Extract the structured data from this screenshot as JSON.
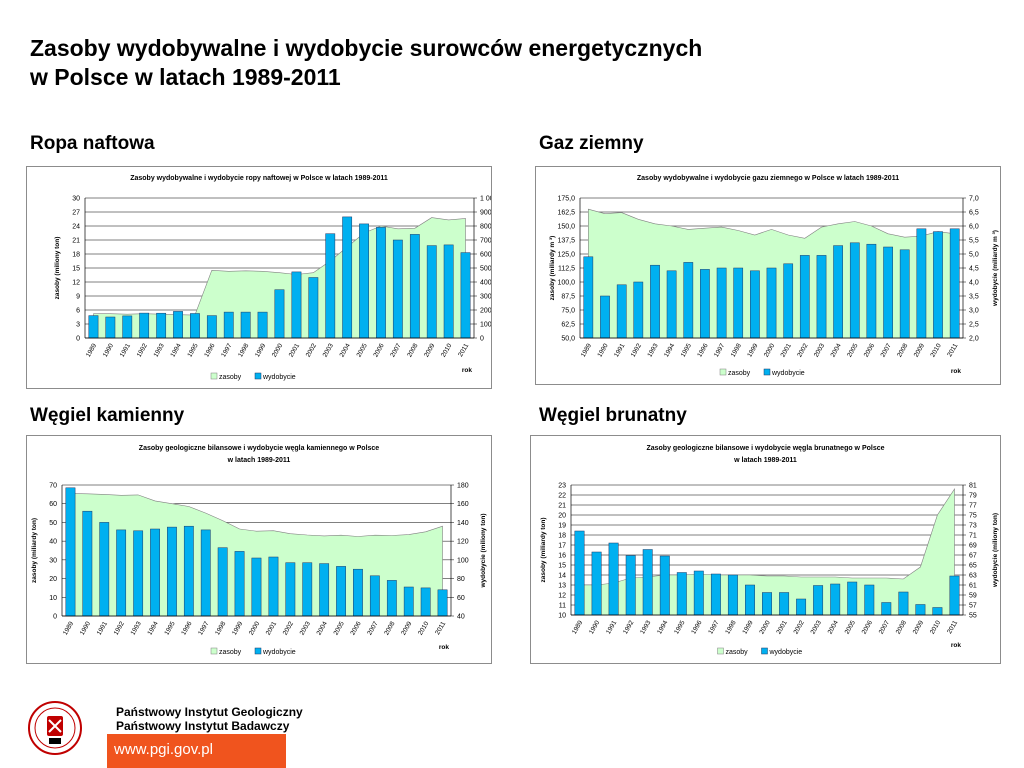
{
  "page": {
    "title_line1": "Zasoby wydobywalne i wydobycie surowców energetycznych",
    "title_line2": "w Polsce w latach 1989-2011"
  },
  "footer": {
    "institute_line1": "Państwowy Instytut Geologiczny",
    "institute_line2": "Państwowy Instytut Badawczy",
    "url": "www.pgi.gov.pl",
    "accent_color": "#f0541e"
  },
  "sections": {
    "oil": "Ropa naftowa",
    "gas": "Gaz ziemny",
    "hard_coal": "Węgiel kamienny",
    "lignite": "Węgiel brunatny"
  },
  "chart_data": [
    {
      "id": "oil",
      "type": "bar",
      "title": [
        "Zasoby wydobywalne i wydobycie ropy naftowej w Polsce w latach 1989-2011"
      ],
      "categories": [
        "1989",
        "1990",
        "1991",
        "1992",
        "1993",
        "1994",
        "1995",
        "1996",
        "1997",
        "1998",
        "1999",
        "2000",
        "2001",
        "2002",
        "2003",
        "2004",
        "2005",
        "2006",
        "2007",
        "2008",
        "2009",
        "2010",
        "2011"
      ],
      "xlabel": "rok",
      "ylabel_left": "zasoby (miliony ton)",
      "ylabel_right": "wydobycie (tysiące ton)",
      "ylim_left": [
        0,
        30
      ],
      "ylim_right": [
        0,
        1000
      ],
      "ticks_left": [
        "0",
        "3",
        "6",
        "9",
        "12",
        "15",
        "18",
        "21",
        "24",
        "27",
        "30"
      ],
      "ticks_right": [
        "0",
        "100",
        "200",
        "300",
        "400",
        "500",
        "600",
        "700",
        "800",
        "900",
        "1 000"
      ],
      "series": [
        {
          "name": "zasoby",
          "kind": "area",
          "axis": "left",
          "color": "#ccffcc",
          "values": [
            5.2,
            5.2,
            5.1,
            5.2,
            5.1,
            5.0,
            4.9,
            14.5,
            14.3,
            14.4,
            14.3,
            14.0,
            13.6,
            14.0,
            16.5,
            19.5,
            22.5,
            24.0,
            23.4,
            23.5,
            25.8,
            25.3,
            25.6
          ]
        },
        {
          "name": "wydobycie",
          "kind": "bar",
          "axis": "right",
          "color": "#00b0f0",
          "values": [
            160,
            150,
            158,
            178,
            177,
            190,
            175,
            160,
            185,
            185,
            185,
            345,
            472,
            432,
            745,
            865,
            815,
            790,
            700,
            740,
            660,
            665,
            610
          ]
        }
      ]
    },
    {
      "id": "gas",
      "type": "bar",
      "title": [
        "Zasoby wydobywalne i wydobycie gazu ziemnego w Polsce w latach 1989-2011"
      ],
      "categories": [
        "1989",
        "1990",
        "1991",
        "1992",
        "1993",
        "1994",
        "1995",
        "1996",
        "1997",
        "1998",
        "1999",
        "2000",
        "2001",
        "2002",
        "2003",
        "2004",
        "2005",
        "2006",
        "2007",
        "2008",
        "2009",
        "2010",
        "2011"
      ],
      "xlabel": "rok",
      "ylabel_left": "zasoby (miliardy m ³)",
      "ylabel_right": "wydobycie (miliardy m ³)",
      "ylim_left": [
        50,
        175
      ],
      "ylim_right": [
        2,
        7
      ],
      "ticks_left": [
        "50,0",
        "62,5",
        "75,0",
        "87,5",
        "100,0",
        "112,5",
        "125,0",
        "137,5",
        "150,0",
        "162,5",
        "175,0"
      ],
      "ticks_right": [
        "2,0",
        "2,5",
        "3,0",
        "3,5",
        "4,0",
        "4,5",
        "5,0",
        "5,5",
        "6,0",
        "6,5",
        "7,0"
      ],
      "series": [
        {
          "name": "zasoby",
          "kind": "area",
          "axis": "left",
          "color": "#ccffcc",
          "values": [
            165,
            161,
            162,
            156,
            152,
            150,
            147,
            148,
            149,
            146,
            142,
            147,
            142,
            139,
            149,
            152,
            154,
            150,
            143,
            140,
            141,
            145,
            143
          ]
        },
        {
          "name": "wydobycie",
          "kind": "bar",
          "axis": "right",
          "color": "#00b0f0",
          "values": [
            4.9,
            3.5,
            3.9,
            4.0,
            4.6,
            4.4,
            4.7,
            4.45,
            4.5,
            4.5,
            4.4,
            4.5,
            4.65,
            4.95,
            4.95,
            5.3,
            5.4,
            5.35,
            5.25,
            5.15,
            5.9,
            5.8,
            5.9
          ]
        }
      ]
    },
    {
      "id": "hard_coal",
      "type": "bar",
      "title": [
        "Zasoby geologiczne bilansowe i wydobycie węgla kamiennego w Polsce",
        "w latach 1989-2011"
      ],
      "categories": [
        "1989",
        "1990",
        "1991",
        "1992",
        "1993",
        "1994",
        "1995",
        "1996",
        "1997",
        "1998",
        "1999",
        "2000",
        "2001",
        "2002",
        "2003",
        "2004",
        "2005",
        "2006",
        "2007",
        "2008",
        "2009",
        "2010",
        "2011"
      ],
      "xlabel": "rok",
      "ylabel_left": "zasoby (miliardy ton)",
      "ylabel_right": "wydobycie (miliony ton)",
      "ylim_left": [
        0,
        70
      ],
      "ylim_right": [
        40,
        180
      ],
      "ticks_left": [
        "0",
        "10",
        "20",
        "30",
        "40",
        "50",
        "60",
        "70"
      ],
      "ticks_right": [
        "40",
        "60",
        "80",
        "100",
        "120",
        "140",
        "160",
        "180"
      ],
      "series": [
        {
          "name": "zasoby",
          "kind": "area",
          "axis": "left",
          "color": "#ccffcc",
          "values": [
            65.5,
            65.3,
            65.0,
            64.5,
            64.7,
            61.5,
            60.0,
            58.5,
            55.0,
            51.0,
            46.5,
            45.3,
            45.6,
            44.0,
            43.3,
            42.8,
            43.2,
            42.5,
            43.2,
            43.0,
            43.5,
            45.0,
            48.0
          ]
        },
        {
          "name": "wydobycie",
          "kind": "bar",
          "axis": "right",
          "color": "#00b0f0",
          "values": [
            177,
            152,
            140,
            132,
            131,
            133,
            135,
            136,
            132,
            113,
            109,
            102,
            103,
            97,
            97,
            96,
            93,
            90,
            83,
            78,
            71,
            70,
            68
          ]
        }
      ]
    },
    {
      "id": "lignite",
      "type": "bar",
      "title": [
        "Zasoby geologiczne bilansowe i wydobycie węgla brunatnego w Polsce",
        "w latach 1989-2011"
      ],
      "categories": [
        "1989",
        "1990",
        "1991",
        "1992",
        "1993",
        "1994",
        "1995",
        "1996",
        "1997",
        "1998",
        "1999",
        "2000",
        "2001",
        "2002",
        "2003",
        "2004",
        "2005",
        "2006",
        "2007",
        "2008",
        "2009",
        "2010",
        "2011"
      ],
      "xlabel": "rok",
      "ylabel_left": "zasoby (miliardy ton)",
      "ylabel_right": "wydobycie (miliony ton)",
      "ylim_left": [
        10,
        23
      ],
      "ylim_right": [
        55,
        81
      ],
      "ticks_left": [
        "10",
        "11",
        "12",
        "13",
        "14",
        "15",
        "16",
        "17",
        "18",
        "19",
        "20",
        "21",
        "22",
        "23"
      ],
      "ticks_right": [
        "55",
        "57",
        "59",
        "61",
        "63",
        "65",
        "67",
        "69",
        "71",
        "73",
        "75",
        "77",
        "79",
        "81"
      ],
      "series": [
        {
          "name": "zasoby",
          "kind": "area",
          "axis": "left",
          "color": "#ccffcc",
          "values": [
            13.0,
            13.0,
            13.2,
            13.7,
            13.8,
            14.0,
            14.0,
            14.1,
            14.0,
            14.0,
            14.0,
            13.9,
            13.9,
            13.8,
            13.8,
            13.8,
            13.7,
            13.7,
            13.7,
            13.6,
            14.8,
            20.0,
            22.6
          ]
        },
        {
          "name": "wydobycie",
          "kind": "bar",
          "axis": "right",
          "color": "#00b0f0",
          "values": [
            71.8,
            67.6,
            69.4,
            66.9,
            68.1,
            66.8,
            63.5,
            63.8,
            63.2,
            63.0,
            61.0,
            59.5,
            59.5,
            58.2,
            60.9,
            61.2,
            61.6,
            61.0,
            57.5,
            59.6,
            57.1,
            56.5,
            62.8
          ]
        }
      ]
    }
  ]
}
